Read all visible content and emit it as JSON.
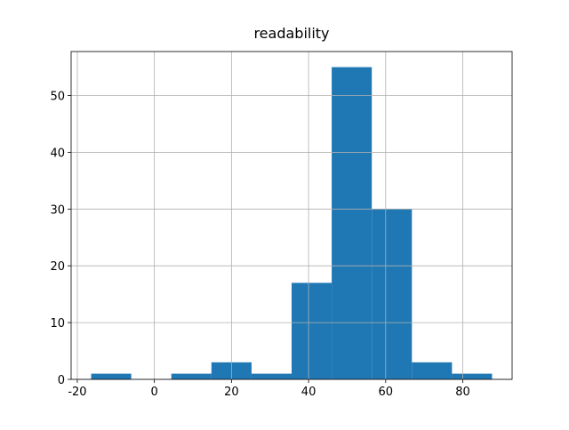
{
  "chart_data": {
    "type": "histogram",
    "title": "readability",
    "bins": [
      -16.4,
      -6.0,
      4.4,
      14.8,
      25.2,
      35.6,
      46.0,
      56.4,
      66.8,
      77.2,
      87.6
    ],
    "values": [
      1,
      0,
      1,
      3,
      1,
      17,
      55,
      30,
      3,
      1
    ],
    "color": "#1f77b4",
    "xlim": [
      -21.6,
      92.8
    ],
    "xticks": [
      -20,
      0,
      20,
      40,
      60,
      80
    ],
    "ylim": [
      0,
      57.75
    ],
    "yticks": [
      0,
      10,
      20,
      30,
      40,
      50
    ],
    "grid": true
  }
}
